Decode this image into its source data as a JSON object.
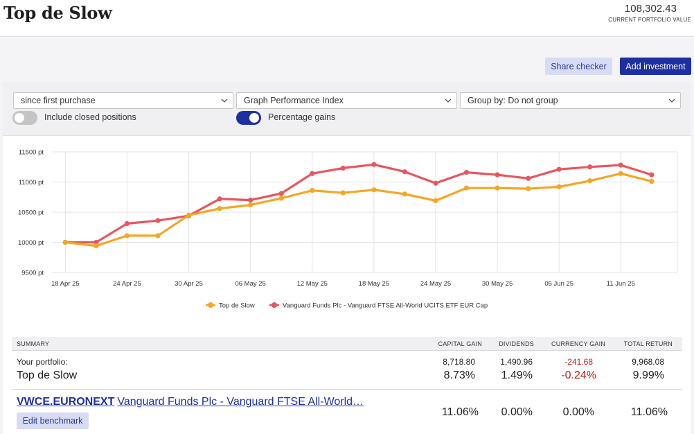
{
  "header": {
    "title": "Top de Slow",
    "portfolio_value": "108,302.43",
    "portfolio_caption": "CURRENT PORTFOLIO VALUE"
  },
  "actions": {
    "share_label": "Share checker",
    "add_label": "Add investment"
  },
  "filters": {
    "period": "since first purchase",
    "graph_type": "Graph Performance Index",
    "group_by": "Group by: Do not group",
    "include_closed_label": "Include closed positions",
    "include_closed_on": false,
    "percentage_label": "Percentage gains",
    "percentage_on": true
  },
  "colors": {
    "accent": "#1e2fa3",
    "portfolio_series": "#f5a623",
    "benchmark_series": "#e8565f",
    "negative": "#c0201a"
  },
  "chart_data": {
    "type": "line",
    "y_unit": "pt",
    "ylim": [
      9500,
      11500
    ],
    "y_ticks": [
      "11500 pt",
      "11000 pt",
      "10500 pt",
      "10000 pt",
      "9500 pt"
    ],
    "y_tick_values": [
      11500,
      11000,
      10500,
      10000,
      9500
    ],
    "x_tick_labels": [
      "18 Apr 25",
      "24 Apr 25",
      "30 Apr 25",
      "06 May 25",
      "12 May 25",
      "18 May 25",
      "24 May 25",
      "30 May 25",
      "05 Jun 25",
      "11 Jun 25"
    ],
    "x_tick_days": [
      0,
      6,
      12,
      18,
      24,
      30,
      36,
      42,
      48,
      54
    ],
    "x_range_days": [
      -1.3,
      59.5
    ],
    "x_days": [
      0,
      3,
      6,
      9,
      12,
      15,
      18,
      21,
      24,
      27,
      30,
      33,
      36,
      39,
      42,
      45,
      48,
      51,
      54,
      57
    ],
    "series": [
      {
        "name": "Top de Slow",
        "values": [
          10000,
          9940,
          10110,
          10110,
          10450,
          10560,
          10620,
          10730,
          10860,
          10820,
          10870,
          10800,
          10690,
          10900,
          10900,
          10890,
          10920,
          11020,
          11140,
          11010
        ]
      },
      {
        "name": "Vanguard Funds Plc - Vanguard FTSE All-World UCITS ETF EUR Cap",
        "values": [
          10000,
          10000,
          10310,
          10360,
          10440,
          10720,
          10700,
          10810,
          11140,
          11230,
          11290,
          11170,
          10980,
          11160,
          11120,
          11060,
          11210,
          11250,
          11280,
          11120
        ]
      }
    ]
  },
  "summary": {
    "headers": {
      "summary": "SUMMARY",
      "capital_gain": "CAPITAL GAIN",
      "dividends": "DIVIDENDS",
      "currency_gain": "CURRENCY GAIN",
      "total_return": "TOTAL RETURN"
    },
    "portfolio": {
      "caption": "Your portfolio:",
      "name": "Top de Slow",
      "capital_gain": "8,718.80",
      "capital_gain_pct": "8.73%",
      "dividends": "1,490.96",
      "dividends_pct": "1.49%",
      "currency_gain": "-241.68",
      "currency_gain_pct": "-0.24%",
      "total_return": "9,968.08",
      "total_return_pct": "9.99%"
    },
    "benchmark": {
      "ticker": "VWCE.EURONEXT",
      "name": "Vanguard Funds Plc - Vanguard FTSE All-World…",
      "edit_label": "Edit benchmark",
      "capital_gain_pct": "11.06%",
      "dividends_pct": "0.00%",
      "currency_gain_pct": "0.00%",
      "total_return_pct": "11.06%"
    }
  }
}
